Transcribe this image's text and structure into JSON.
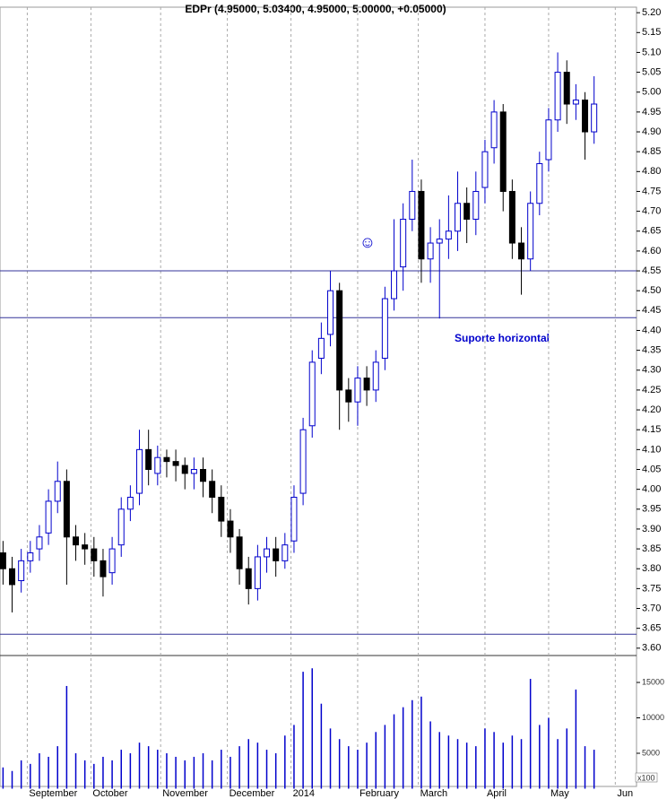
{
  "chart_data": {
    "type": "candlestick",
    "title": "EDPr (4.95000, 5.03400, 4.95000, 5.00000, +0.05000)",
    "annotations": [
      "Suporte horizontal",
      "☺"
    ],
    "volume_unit_label": "x100",
    "up_color": "#0000cc",
    "down_color": "#000000",
    "volume_color": "#0000cc",
    "line_color": "#333399",
    "xlim": [
      0,
      210
    ],
    "xticks": [
      {
        "value": 9,
        "label": "September"
      },
      {
        "value": 30,
        "label": "October"
      },
      {
        "value": 53,
        "label": "November"
      },
      {
        "value": 75,
        "label": "December"
      },
      {
        "value": 96,
        "label": "2014"
      },
      {
        "value": 118,
        "label": "February"
      },
      {
        "value": 138,
        "label": "March"
      },
      {
        "value": 160,
        "label": "April"
      },
      {
        "value": 181,
        "label": "May"
      },
      {
        "value": 203,
        "label": "Jun"
      }
    ],
    "ylim": [
      3.5815,
      5.2139
    ],
    "yticks": [
      {
        "value": 3.6,
        "label": "3.60"
      },
      {
        "value": 3.65,
        "label": "3.65"
      },
      {
        "value": 3.7,
        "label": "3.70"
      },
      {
        "value": 3.75,
        "label": "3.75"
      },
      {
        "value": 3.8,
        "label": "3.80"
      },
      {
        "value": 3.85,
        "label": "3.85"
      },
      {
        "value": 3.9,
        "label": "3.90"
      },
      {
        "value": 3.95,
        "label": "3.95"
      },
      {
        "value": 4.0,
        "label": "4.00"
      },
      {
        "value": 4.05,
        "label": "4.05"
      },
      {
        "value": 4.1,
        "label": "4.10"
      },
      {
        "value": 4.15,
        "label": "4.15"
      },
      {
        "value": 4.2,
        "label": "4.20"
      },
      {
        "value": 4.25,
        "label": "4.25"
      },
      {
        "value": 4.3,
        "label": "4.30"
      },
      {
        "value": 4.35,
        "label": "4.35"
      },
      {
        "value": 4.4,
        "label": "4.40"
      },
      {
        "value": 4.45,
        "label": "4.45"
      },
      {
        "value": 4.5,
        "label": "4.50"
      },
      {
        "value": 4.55,
        "label": "4.55"
      },
      {
        "value": 4.6,
        "label": "4.60"
      },
      {
        "value": 4.65,
        "label": "4.65"
      },
      {
        "value": 4.7,
        "label": "4.70"
      },
      {
        "value": 4.75,
        "label": "4.75"
      },
      {
        "value": 4.8,
        "label": "4.80"
      },
      {
        "value": 4.85,
        "label": "4.85"
      },
      {
        "value": 4.9,
        "label": "4.90"
      },
      {
        "value": 4.95,
        "label": "4.95"
      },
      {
        "value": 5.0,
        "label": "5.00"
      },
      {
        "value": 5.05,
        "label": "5.05"
      },
      {
        "value": 5.1,
        "label": "5.10"
      },
      {
        "value": 5.15,
        "label": "5.15"
      },
      {
        "value": 5.2,
        "label": "5.20"
      }
    ],
    "hlines": [
      4.55,
      4.432,
      3.635
    ],
    "y2lim": [
      0,
      18800
    ],
    "y2ticks": [
      5000,
      10000,
      15000
    ],
    "x": [
      1,
      4,
      7,
      10,
      13,
      16,
      19,
      22,
      25,
      28,
      31,
      34,
      37,
      40,
      43,
      46,
      49,
      52,
      55,
      58,
      61,
      64,
      67,
      70,
      73,
      76,
      79,
      82,
      85,
      88,
      91,
      94,
      97,
      100,
      103,
      106,
      109,
      112,
      115,
      118,
      121,
      124,
      127,
      130,
      133,
      136,
      139,
      142,
      145,
      148,
      151,
      154,
      157,
      160,
      163,
      166,
      169,
      172,
      175,
      178,
      181,
      184,
      187,
      190,
      193,
      196
    ],
    "open": [
      3.84,
      3.8,
      3.77,
      3.82,
      3.85,
      3.89,
      3.97,
      4.02,
      3.88,
      3.86,
      3.85,
      3.82,
      3.79,
      3.86,
      3.95,
      3.99,
      4.1,
      4.04,
      4.08,
      4.07,
      4.06,
      4.04,
      4.05,
      4.02,
      3.98,
      3.92,
      3.88,
      3.8,
      3.75,
      3.83,
      3.85,
      3.82,
      3.87,
      3.99,
      4.16,
      4.33,
      4.39,
      4.5,
      4.25,
      4.22,
      4.28,
      4.25,
      4.33,
      4.48,
      4.56,
      4.68,
      4.75,
      4.58,
      4.62,
      4.63,
      4.65,
      4.72,
      4.68,
      4.76,
      4.86,
      4.95,
      4.75,
      4.62,
      4.58,
      4.72,
      4.83,
      4.93,
      5.05,
      4.97,
      4.98,
      4.9
    ],
    "high": [
      3.87,
      3.83,
      3.85,
      3.87,
      3.91,
      4.0,
      4.07,
      4.05,
      3.91,
      3.89,
      3.88,
      3.85,
      3.88,
      3.98,
      4.01,
      4.15,
      4.15,
      4.11,
      4.1,
      4.1,
      4.08,
      4.08,
      4.08,
      4.05,
      4.01,
      3.95,
      3.9,
      3.83,
      3.86,
      3.88,
      3.88,
      3.89,
      4.01,
      4.18,
      4.35,
      4.42,
      4.55,
      4.52,
      4.28,
      4.31,
      4.31,
      4.35,
      4.51,
      4.68,
      4.72,
      4.83,
      4.78,
      4.66,
      4.68,
      4.74,
      4.8,
      4.76,
      4.8,
      4.88,
      4.98,
      4.97,
      4.78,
      4.66,
      4.75,
      4.85,
      4.96,
      5.1,
      5.08,
      5.02,
      5.0,
      5.04
    ],
    "low": [
      3.76,
      3.69,
      3.74,
      3.79,
      3.82,
      3.86,
      3.94,
      3.76,
      3.82,
      3.81,
      3.78,
      3.73,
      3.76,
      3.83,
      3.92,
      3.96,
      4.01,
      4.01,
      4.03,
      4.02,
      4.0,
      4.0,
      3.98,
      3.94,
      3.88,
      3.84,
      3.76,
      3.71,
      3.72,
      3.79,
      3.78,
      3.8,
      3.84,
      3.96,
      4.13,
      4.29,
      4.36,
      4.15,
      4.17,
      4.16,
      4.21,
      4.22,
      4.3,
      4.45,
      4.5,
      4.65,
      4.52,
      4.52,
      4.43,
      4.58,
      4.6,
      4.62,
      4.64,
      4.72,
      4.82,
      4.7,
      4.58,
      4.49,
      4.55,
      4.69,
      4.8,
      4.9,
      4.92,
      4.93,
      4.83,
      4.87
    ],
    "close": [
      3.8,
      3.76,
      3.82,
      3.84,
      3.88,
      3.97,
      4.02,
      3.88,
      3.86,
      3.85,
      3.82,
      3.78,
      3.85,
      3.95,
      3.98,
      4.1,
      4.05,
      4.08,
      4.07,
      4.06,
      4.04,
      4.05,
      4.02,
      3.98,
      3.92,
      3.88,
      3.8,
      3.75,
      3.83,
      3.85,
      3.82,
      3.86,
      3.98,
      4.15,
      4.32,
      4.38,
      4.5,
      4.25,
      4.22,
      4.28,
      4.25,
      4.32,
      4.48,
      4.55,
      4.68,
      4.75,
      4.58,
      4.62,
      4.63,
      4.65,
      4.72,
      4.68,
      4.75,
      4.85,
      4.95,
      4.75,
      4.62,
      4.58,
      4.72,
      4.82,
      4.93,
      5.05,
      4.97,
      4.98,
      4.9,
      4.97
    ],
    "volume": [
      3000,
      2500,
      4000,
      3500,
      5000,
      4500,
      6000,
      14500,
      5000,
      4000,
      3500,
      4500,
      4000,
      5500,
      5000,
      6500,
      6000,
      5500,
      5000,
      4500,
      4000,
      4500,
      5000,
      4000,
      5500,
      4500,
      6000,
      7000,
      6500,
      5500,
      5000,
      7500,
      9000,
      16500,
      17000,
      12000,
      8500,
      7000,
      6000,
      5500,
      6500,
      8000,
      9000,
      10500,
      11500,
      12500,
      13000,
      9500,
      8000,
      7500,
      7000,
      6500,
      6000,
      8500,
      8000,
      6500,
      7500,
      7000,
      15500,
      9000,
      10000,
      7000,
      8500,
      14000,
      6000,
      5500
    ]
  }
}
